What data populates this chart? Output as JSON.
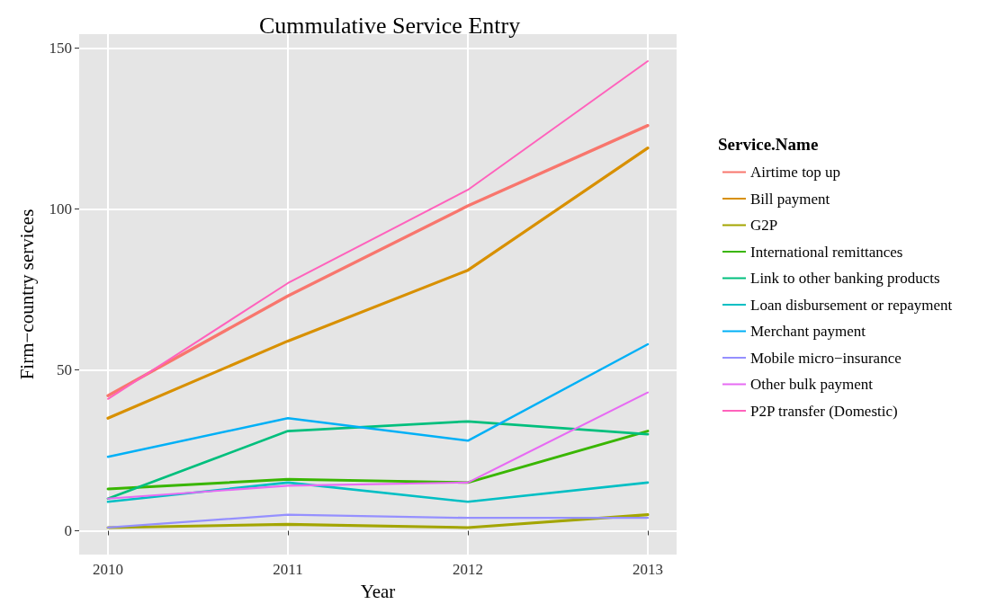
{
  "chart_data": {
    "type": "line",
    "title": "Cummulative Service Entry",
    "xlabel": "Year",
    "ylabel": "Firm−country services",
    "legend_title": "Service.Name",
    "x": [
      2010,
      2011,
      2012,
      2013
    ],
    "xlim": [
      2009.84,
      2013.16
    ],
    "xticks": [
      2010,
      2011,
      2012,
      2013
    ],
    "ylim": [
      -7.4,
      154.4
    ],
    "yticks": [
      0,
      50,
      100,
      150
    ],
    "grid": true,
    "legend": "right",
    "marker": "none",
    "line_style": "solid",
    "series": [
      {
        "name": "Airtime top up",
        "color": "#f8766d",
        "values": [
          42,
          73,
          101,
          126
        ]
      },
      {
        "name": "Bill payment",
        "color": "#d89000",
        "values": [
          35,
          59,
          81,
          119
        ]
      },
      {
        "name": "G2P",
        "color": "#a3a500",
        "values": [
          1,
          2,
          1,
          5
        ]
      },
      {
        "name": "International remittances",
        "color": "#39b600",
        "values": [
          13,
          16,
          15,
          31
        ]
      },
      {
        "name": "Link to other banking products",
        "color": "#00bf7d",
        "values": [
          10,
          31,
          34,
          30
        ]
      },
      {
        "name": "Loan disbursement or repayment",
        "color": "#00bfc4",
        "values": [
          9,
          15,
          9,
          15
        ]
      },
      {
        "name": "Merchant payment",
        "color": "#00b0f6",
        "values": [
          23,
          35,
          28,
          58
        ]
      },
      {
        "name": "Mobile micro−insurance",
        "color": "#9590ff",
        "values": [
          1,
          5,
          4,
          4
        ]
      },
      {
        "name": "Other bulk payment",
        "color": "#e76bf3",
        "values": [
          10,
          14,
          15,
          43
        ]
      },
      {
        "name": "P2P transfer (Domestic)",
        "color": "#ff62bc",
        "values": [
          41,
          77,
          106,
          146
        ]
      }
    ]
  }
}
